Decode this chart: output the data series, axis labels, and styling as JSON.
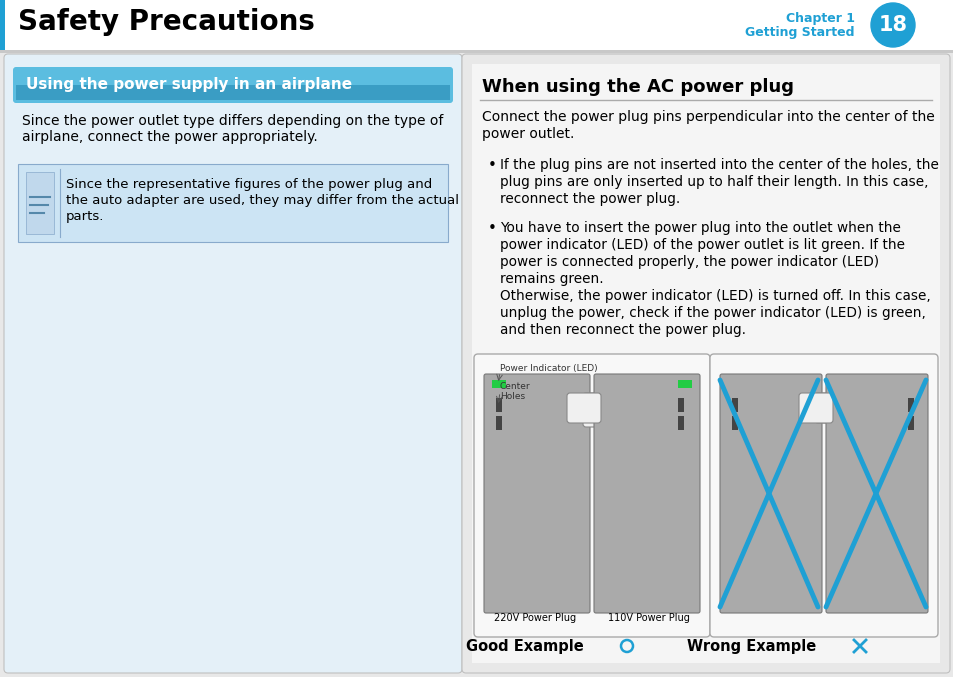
{
  "bg_color": "#e8e8e8",
  "header_bg": "#ffffff",
  "header_title": "Safety Precautions",
  "header_chapter": "Chapter 1",
  "header_subtitle": "Getting Started",
  "header_page": "18",
  "header_circle_color": "#1fa0d4",
  "left_panel_bg": "#e4f0f8",
  "left_panel_border": "#c0c0c0",
  "left_section_header_bg_top": "#7ec8e8",
  "left_section_header_bg_bot": "#4aaad4",
  "left_section_header_text": "Using the power supply in an airplane",
  "left_section_header_text_color": "#ffffff",
  "left_body_text1_l1": "Since the power outlet type differs depending on the type of",
  "left_body_text1_l2": "airplane, connect the power appropriately.",
  "note_bg": "#cce4f4",
  "note_border": "#aaccdd",
  "note_text_l1": "Since the representative figures of the power plug and",
  "note_text_l2": "the auto adapter are used, they may differ from the actual",
  "note_text_l3": "parts.",
  "right_panel_bg": "#e8e8e8",
  "right_inner_bg": "#f0f0f0",
  "right_panel_border": "#c0c0c0",
  "right_title": "When using the AC power plug",
  "right_title_underline": "#aaaaaa",
  "right_intro_l1": "Connect the power plug pins perpendicular into the center of the",
  "right_intro_l2": "power outlet.",
  "bullet1_l1": "If the plug pins are not inserted into the center of the holes, the",
  "bullet1_l2": "plug pins are only inserted up to half their length. In this case,",
  "bullet1_l3": "reconnect the power plug.",
  "bullet2_l1": "You have to insert the power plug into the outlet when the",
  "bullet2_l2": "power indicator (LED) of the power outlet is lit green. If the",
  "bullet2_l3": "power is connected properly, the power indicator (LED)",
  "bullet2_l4": "remains green.",
  "bullet2_l5": "Otherwise, the power indicator (LED) is turned off. In this case,",
  "bullet2_l6": "unplug the power, check if the power indicator (LED) is green,",
  "bullet2_l7": "and then reconnect the power plug.",
  "good_label": "Good Example",
  "wrong_label": "Wrong Example",
  "label_220": "220V Power Plug",
  "label_110": "110V Power Plug",
  "good_circle_color": "#1fa0d4",
  "wrong_x_color": "#1fa0d4",
  "plug_dark": "#505050",
  "plug_mid": "#888888",
  "plug_light": "#c0c0c0",
  "led_green": "#22cc44"
}
